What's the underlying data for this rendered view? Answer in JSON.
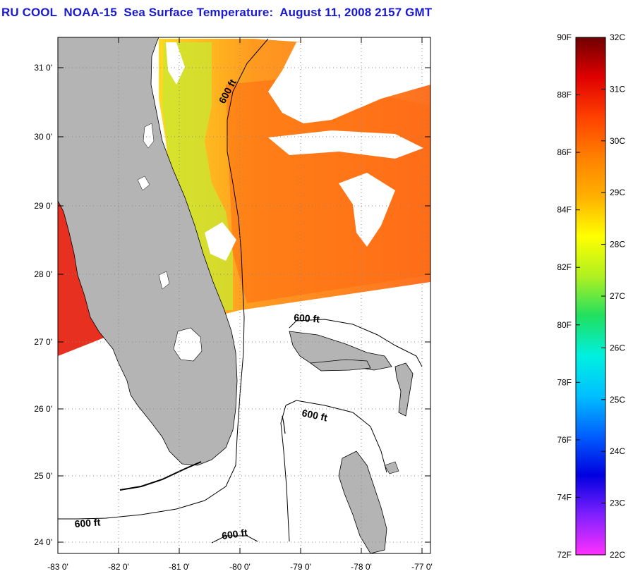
{
  "title": "RU COOL  NOAA-15  Sea Surface Temperature:  August 11, 2008 2157 GMT",
  "map": {
    "land_color": "#b4b4b4",
    "cloud_color": "#ffffff",
    "lat_labels": [
      "31 0'",
      "30 0'",
      "29 0'",
      "28 0'",
      "27 0'",
      "26 0'",
      "25 0'",
      "24 0'"
    ],
    "lon_labels": [
      "-83 0'",
      "-82 0'",
      "-81 0'",
      "-80 0'",
      "-79 0'",
      "-78 0'",
      "-77 0'"
    ],
    "contour_labels": [
      "600 ft",
      "600 ft",
      "600 ft",
      "600 ft",
      "600 ft"
    ]
  },
  "colorbar": {
    "fahrenheit_labels": [
      "90F",
      "88F",
      "86F",
      "84F",
      "82F",
      "80F",
      "78F",
      "76F",
      "74F",
      "72F"
    ],
    "celsius_labels": [
      "32C",
      "31C",
      "30C",
      "29C",
      "28C",
      "27C",
      "26C",
      "25C",
      "24C",
      "23C",
      "22C"
    ],
    "colors": [
      "#ff30ff",
      "#8020ff",
      "#0000e0",
      "#0060ff",
      "#00c0ff",
      "#00f0e0",
      "#20e060",
      "#b0f020",
      "#ffff00",
      "#ffb000",
      "#ff8000",
      "#ff4000",
      "#e00000",
      "#700000"
    ]
  }
}
